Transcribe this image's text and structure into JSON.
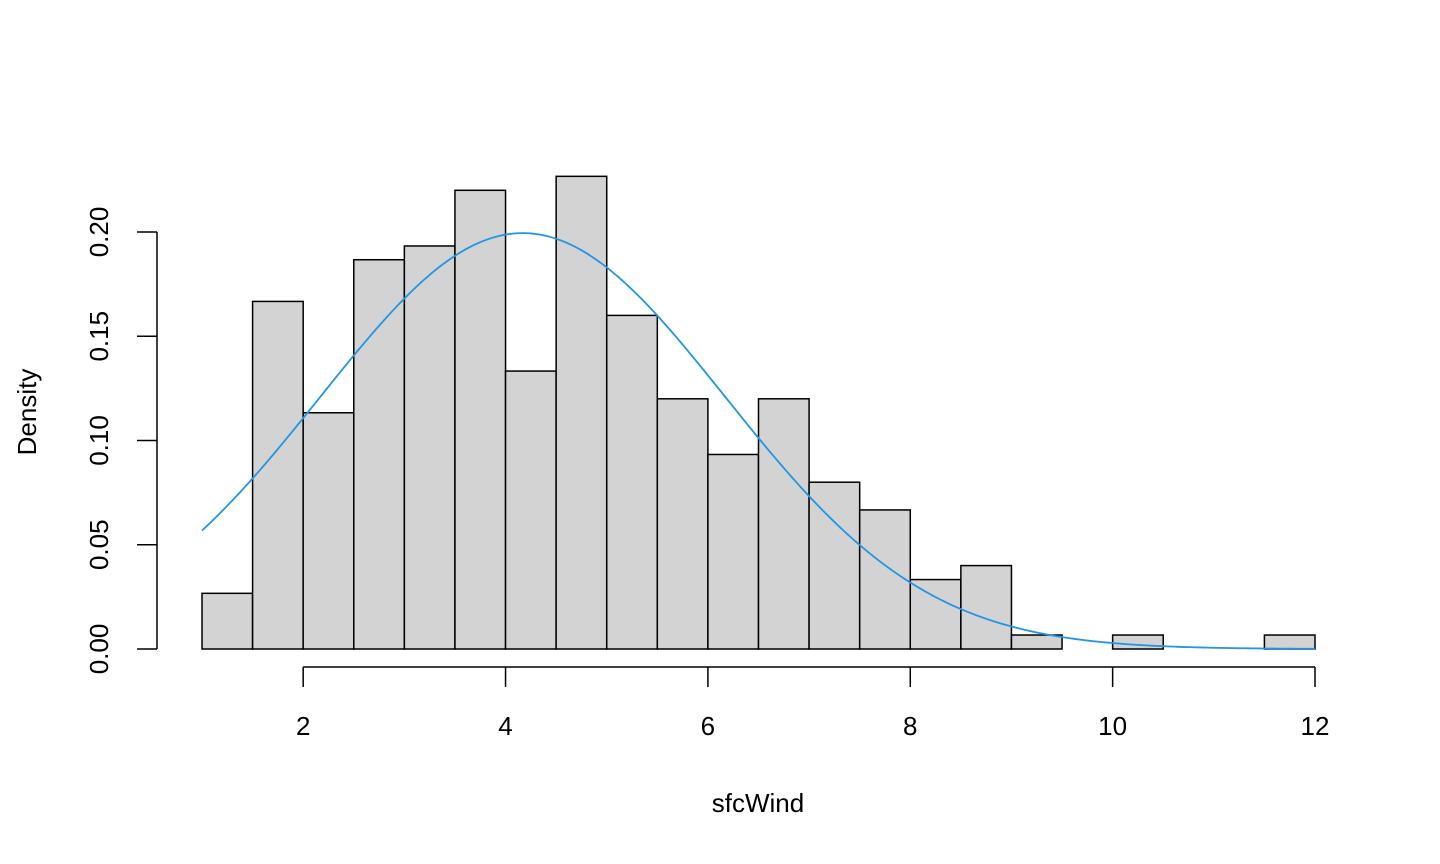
{
  "chart_data": {
    "type": "bar",
    "subtype": "histogram",
    "xlabel": "sfcWind",
    "ylabel": "Density",
    "xlim": [
      1,
      12
    ],
    "ylim": [
      0,
      0.22
    ],
    "x_ticks": [
      2,
      4,
      6,
      8,
      10,
      12
    ],
    "x_tick_labels": [
      "2",
      "4",
      "6",
      "8",
      "10",
      "12"
    ],
    "y_ticks": [
      0,
      0.05,
      0.1,
      0.15,
      0.2
    ],
    "y_tick_labels": [
      "0.00",
      "0.05",
      "0.10",
      "0.15",
      "0.20"
    ],
    "bins": [
      {
        "start": 1.0,
        "end": 1.5,
        "density": 0.0267
      },
      {
        "start": 1.5,
        "end": 2.0,
        "density": 0.1667
      },
      {
        "start": 2.0,
        "end": 2.5,
        "density": 0.1133
      },
      {
        "start": 2.5,
        "end": 3.0,
        "density": 0.1867
      },
      {
        "start": 3.0,
        "end": 3.5,
        "density": 0.1933
      },
      {
        "start": 3.5,
        "end": 4.0,
        "density": 0.22
      },
      {
        "start": 4.0,
        "end": 4.5,
        "density": 0.1333
      },
      {
        "start": 4.5,
        "end": 5.0,
        "density": 0.2267
      },
      {
        "start": 5.0,
        "end": 5.5,
        "density": 0.16
      },
      {
        "start": 5.5,
        "end": 6.0,
        "density": 0.12
      },
      {
        "start": 6.0,
        "end": 6.5,
        "density": 0.0933
      },
      {
        "start": 6.5,
        "end": 7.0,
        "density": 0.12
      },
      {
        "start": 7.0,
        "end": 7.5,
        "density": 0.08
      },
      {
        "start": 7.5,
        "end": 8.0,
        "density": 0.0667
      },
      {
        "start": 8.0,
        "end": 8.5,
        "density": 0.0333
      },
      {
        "start": 8.5,
        "end": 9.0,
        "density": 0.04
      },
      {
        "start": 9.0,
        "end": 9.5,
        "density": 0.0067
      },
      {
        "start": 9.5,
        "end": 10.0,
        "density": 0
      },
      {
        "start": 10.0,
        "end": 10.5,
        "density": 0.0067
      },
      {
        "start": 10.5,
        "end": 11.0,
        "density": 0
      },
      {
        "start": 11.0,
        "end": 11.5,
        "density": 0
      },
      {
        "start": 11.5,
        "end": 12.0,
        "density": 0.0067
      }
    ],
    "density_curve": {
      "type": "normal",
      "mean": 4.17,
      "sd": 2.0
    },
    "grid": false,
    "colors": {
      "bar_fill": "#d3d3d3",
      "bar_stroke": "#000000",
      "curve": "#2196e3"
    }
  }
}
